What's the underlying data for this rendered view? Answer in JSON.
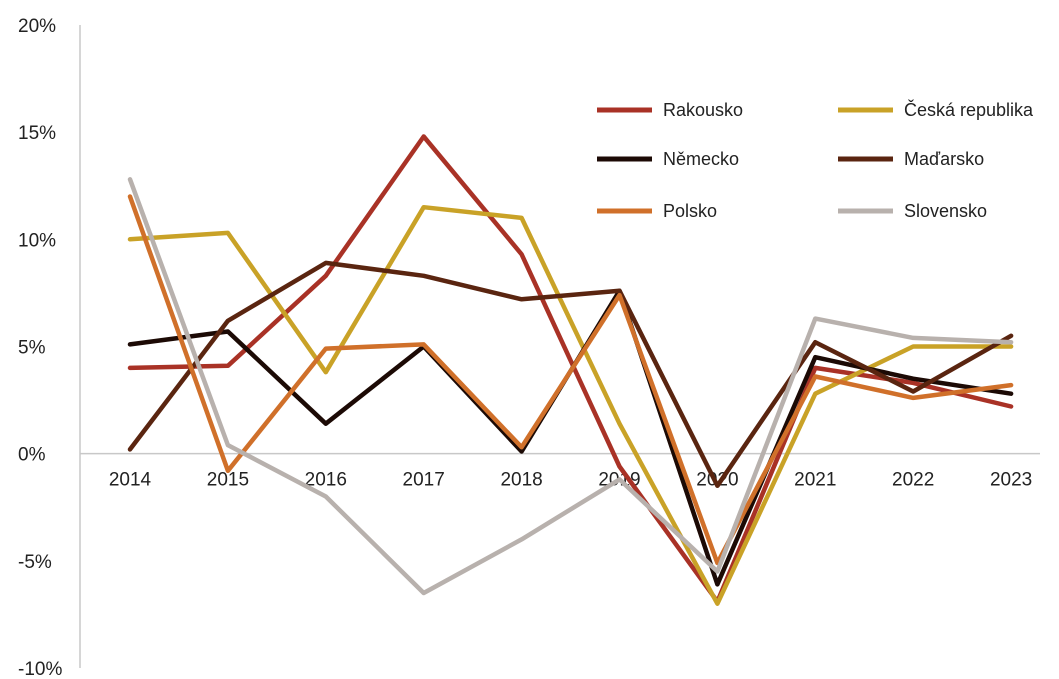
{
  "chart_data": {
    "type": "line",
    "title": "",
    "xlabel": "",
    "ylabel": "",
    "categories": [
      "2014",
      "2015",
      "2016",
      "2017",
      "2018",
      "2019",
      "2020",
      "2021",
      "2022",
      "2023"
    ],
    "y_ticks": [
      20,
      15,
      10,
      5,
      0,
      -5,
      -10
    ],
    "y_tick_labels": [
      "20%",
      "15%",
      "10%",
      "5%",
      "0%",
      "-5%",
      "-10%"
    ],
    "ylim": [
      -10,
      20
    ],
    "grid": false,
    "legend_position": "top-right",
    "series": [
      {
        "name": "Rakousko",
        "color": "#a93226",
        "values": [
          4.0,
          4.1,
          8.3,
          14.8,
          9.3,
          -0.6,
          -6.9,
          4.0,
          3.3,
          2.2
        ]
      },
      {
        "name": "Česká republika",
        "color": "#c9a227",
        "values": [
          10.0,
          10.3,
          3.8,
          11.5,
          11.0,
          1.4,
          -7.0,
          2.8,
          5.0,
          5.0
        ]
      },
      {
        "name": "Německo",
        "color": "#1c0a05",
        "values": [
          5.1,
          5.7,
          1.4,
          5.0,
          0.1,
          7.6,
          -6.1,
          4.5,
          3.5,
          2.8
        ]
      },
      {
        "name": "Maďarsko",
        "color": "#5a2510",
        "values": [
          0.2,
          6.2,
          8.9,
          8.3,
          7.2,
          7.6,
          -1.5,
          5.2,
          2.9,
          5.5
        ]
      },
      {
        "name": "Polsko",
        "color": "#d0702a",
        "values": [
          12.0,
          -0.8,
          4.9,
          5.1,
          0.3,
          7.4,
          -5.1,
          3.6,
          2.6,
          3.2
        ]
      },
      {
        "name": "Slovensko",
        "color": "#b8b1ad",
        "values": [
          12.8,
          0.4,
          -2.0,
          -6.5,
          -4.0,
          -1.2,
          -5.5,
          6.3,
          5.4,
          5.2
        ]
      }
    ]
  }
}
